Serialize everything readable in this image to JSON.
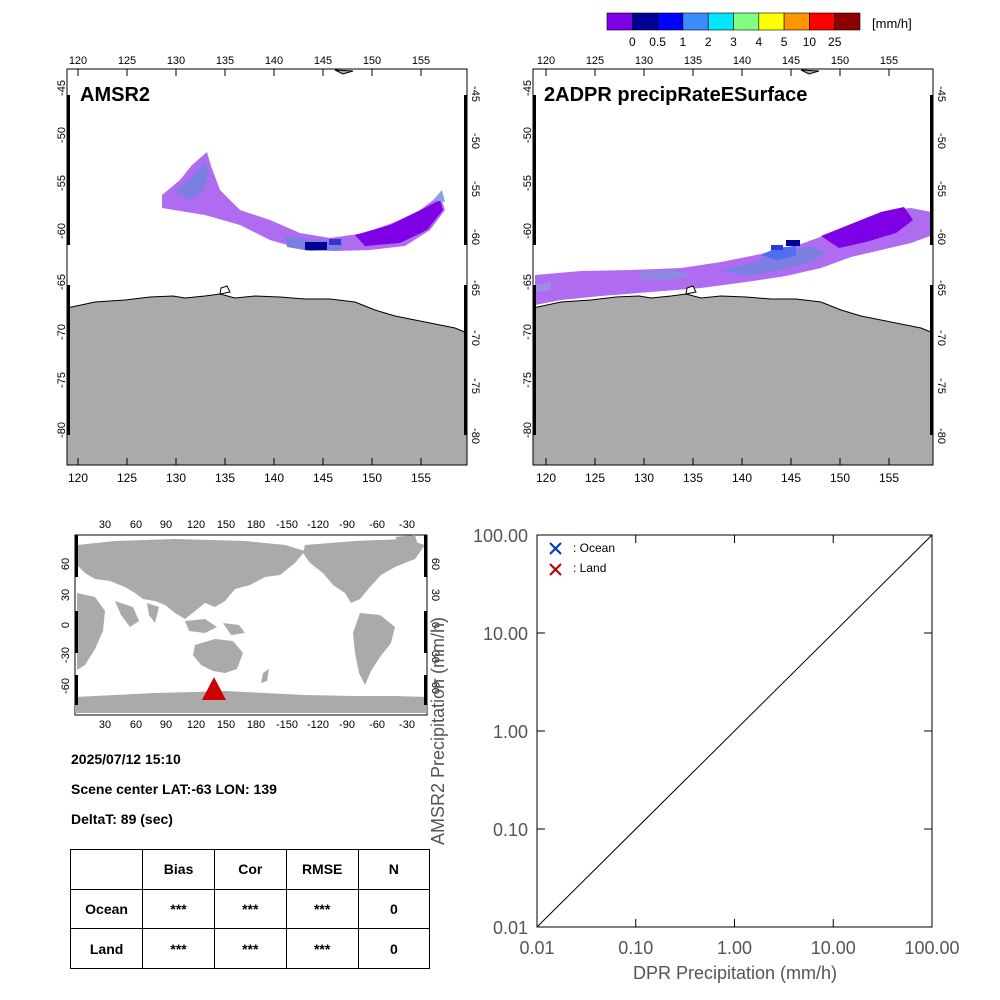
{
  "colorbar": {
    "unit": "[mm/h]",
    "labels": [
      "0",
      "0.5",
      "1",
      "2",
      "3",
      "4",
      "5",
      "10",
      "25"
    ],
    "colors": [
      "#7d00e6",
      "#000096",
      "#0000ff",
      "#3c8cff",
      "#00e6ff",
      "#80ff80",
      "#ffff00",
      "#ff9600",
      "#ff0000",
      "#8c0000"
    ]
  },
  "map_left": {
    "title": "AMSR2",
    "lon_ticks": [
      "120",
      "125",
      "130",
      "135",
      "140",
      "145",
      "150",
      "155"
    ],
    "lat_ticks": [
      "-45",
      "-50",
      "-55",
      "-60",
      "-65",
      "-70",
      "-75",
      "-80"
    ]
  },
  "map_right": {
    "title": "2ADPR precipRateESurface",
    "lon_ticks": [
      "120",
      "125",
      "130",
      "135",
      "140",
      "145",
      "150",
      "155"
    ],
    "lat_ticks": [
      "-45",
      "-50",
      "-55",
      "-60",
      "-65",
      "-70",
      "-75",
      "-80"
    ]
  },
  "world_map": {
    "lon_ticks": [
      "30",
      "60",
      "90",
      "120",
      "150",
      "180",
      "-150",
      "-120",
      "-90",
      "-60",
      "-30"
    ],
    "lat_ticks_left": [
      "60",
      "30",
      "0",
      "-30",
      "-60"
    ],
    "lat_ticks_right": [
      "60",
      "30",
      "0",
      "-30",
      "-60"
    ],
    "marker_color": "#cc0000"
  },
  "info": {
    "datetime": "2025/07/12 15:10",
    "scene_center": "Scene center LAT:-63   LON: 139",
    "deltat": "DeltaT:   89 (sec)"
  },
  "stats_table": {
    "headers": [
      "",
      "Bias",
      "Cor",
      "RMSE",
      "N"
    ],
    "rows": [
      [
        "Ocean",
        "***",
        "***",
        "***",
        "0"
      ],
      [
        "Land",
        "***",
        "***",
        "***",
        "0"
      ]
    ]
  },
  "chart_data": {
    "type": "scatter",
    "title": "",
    "xlabel": "DPR Precipitation (mm/h)",
    "ylabel": "AMSR2 Precipitation (mm/h)",
    "x_scale": "log",
    "y_scale": "log",
    "xlim": [
      0.01,
      100
    ],
    "ylim": [
      0.01,
      100
    ],
    "x_tick_labels": [
      "0.01",
      "0.10",
      "1.00",
      "10.00",
      "100.00"
    ],
    "y_tick_labels": [
      "0.01",
      "0.10",
      "1.00",
      "10.00",
      "100.00"
    ],
    "legend_placement": "top-left",
    "series": [
      {
        "name": ": Ocean",
        "color": "#0033cc",
        "marker": "x",
        "x": [],
        "y": []
      },
      {
        "name": ": Land",
        "color": "#b30000",
        "marker": "x",
        "x": [],
        "y": []
      }
    ],
    "reference_line": "1:1"
  }
}
